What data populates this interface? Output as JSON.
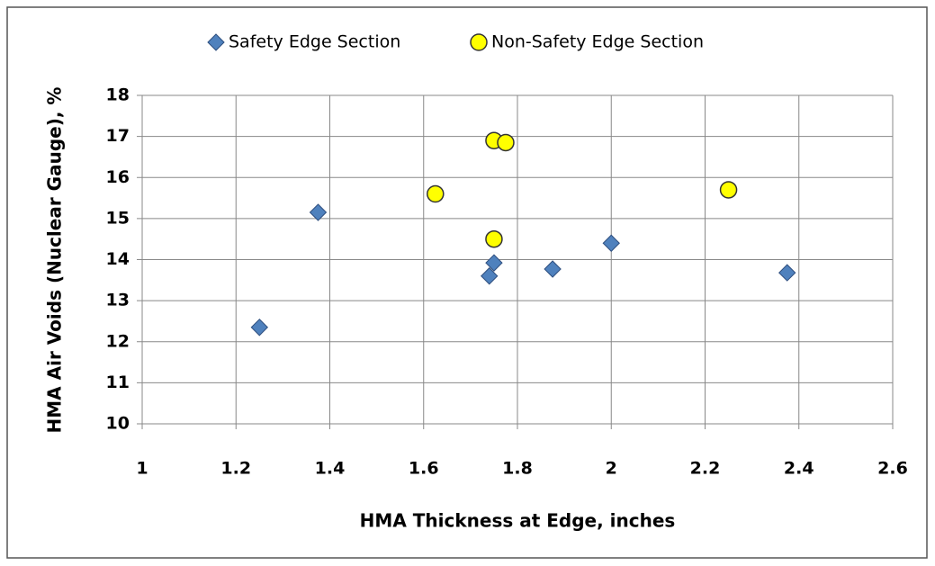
{
  "chart_data": {
    "type": "scatter",
    "xlabel": "HMA Thickness at Edge, inches",
    "ylabel": "HMA Air Voids (Nuclear Gauge), %",
    "series": [
      {
        "name": "Safety Edge Section",
        "color": "#4f81bd",
        "marker": "diamond",
        "x": [
          1.25,
          1.375,
          1.74,
          1.75,
          1.875,
          2.0,
          2.375
        ],
        "values": [
          12.35,
          15.15,
          13.6,
          13.92,
          13.77,
          14.4,
          13.68
        ]
      },
      {
        "name": "Non-Safety Edge Section",
        "color": "#ffff00",
        "marker": "circle",
        "x": [
          1.625,
          1.75,
          1.775,
          1.75,
          2.25
        ],
        "values": [
          15.6,
          16.9,
          16.85,
          14.5,
          15.7
        ]
      }
    ],
    "xlim": [
      1,
      2.6
    ],
    "xticks": [
      1,
      1.2,
      1.4,
      1.6,
      1.8,
      2,
      2.2,
      2.4,
      2.6
    ],
    "ylim": [
      10,
      18
    ],
    "yticks": [
      10,
      11,
      12,
      13,
      14,
      15,
      16,
      17,
      18
    ],
    "grid": true,
    "legend": "top"
  }
}
